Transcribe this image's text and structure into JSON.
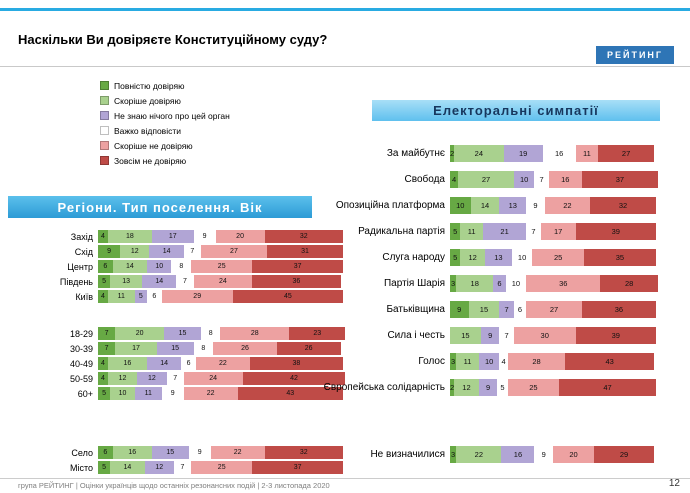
{
  "slide": {
    "title": "Наскільки Ви довіряєте Конституційному суду?",
    "logo": "РЕЙТИНГ",
    "footer": "група РЕЙТИНГ | Оцінки українців щодо останніх резонансних подій | 2-3 листопада 2020",
    "page": "12"
  },
  "legend": [
    {
      "label": "Повністю довіряю",
      "color": "#67A944"
    },
    {
      "label": "Скоріше довіряю",
      "color": "#A9D18E"
    },
    {
      "label": "Не знаю нічого про цей орган",
      "color": "#B1A5D5"
    },
    {
      "label": "Важко відповісти",
      "color": "#FFFFFF"
    },
    {
      "label": "Скоріше не довіряю",
      "color": "#EDA1A1"
    },
    {
      "label": "Зовсім не довіряю",
      "color": "#BF4B47"
    }
  ],
  "chart_data": [
    {
      "type": "bar",
      "variant": "stacked-horizontal",
      "title": "Регіони. Тип поселення. Вік",
      "unit": "%",
      "xlim": [
        0,
        100
      ],
      "series_labels": [
        "Повністю довіряю",
        "Скоріше довіряю",
        "Не знаю нічого про цей орган",
        "Важко відповісти",
        "Скоріше не довіряю",
        "Зовсім не довіряю"
      ],
      "groups": [
        {
          "rows": [
            {
              "label": "Захід",
              "values": [
                4,
                18,
                17,
                9,
                20,
                32
              ]
            },
            {
              "label": "Схід",
              "values": [
                9,
                12,
                14,
                7,
                27,
                31
              ]
            },
            {
              "label": "Центр",
              "values": [
                6,
                14,
                10,
                8,
                25,
                37
              ]
            },
            {
              "label": "Південь",
              "values": [
                5,
                13,
                14,
                7,
                24,
                36
              ]
            },
            {
              "label": "Київ",
              "values": [
                4,
                11,
                5,
                6,
                29,
                45
              ]
            }
          ]
        },
        {
          "rows": [
            {
              "label": "18-29",
              "values": [
                7,
                20,
                15,
                8,
                28,
                23
              ]
            },
            {
              "label": "30-39",
              "values": [
                7,
                17,
                15,
                8,
                26,
                26
              ]
            },
            {
              "label": "40-49",
              "values": [
                4,
                16,
                14,
                6,
                22,
                38
              ]
            },
            {
              "label": "50-59",
              "values": [
                4,
                12,
                12,
                7,
                24,
                42
              ]
            },
            {
              "label": "60+",
              "values": [
                5,
                10,
                11,
                9,
                22,
                43
              ]
            }
          ]
        },
        {
          "rows": [
            {
              "label": "Село",
              "values": [
                6,
                16,
                15,
                9,
                22,
                32
              ]
            },
            {
              "label": "Місто",
              "values": [
                5,
                14,
                12,
                7,
                25,
                37
              ]
            }
          ]
        }
      ]
    },
    {
      "type": "bar",
      "variant": "stacked-horizontal",
      "title": "Електоральні симпатії",
      "unit": "%",
      "xlim": [
        0,
        100
      ],
      "series_labels": [
        "Повністю довіряю",
        "Скоріше довіряю",
        "Не знаю нічого про цей орган",
        "Важко відповісти",
        "Скоріше не довіряю",
        "Зовсім не довіряю"
      ],
      "groups": [
        {
          "rows": [
            {
              "label": "За майбутнє",
              "values": [
                2,
                24,
                19,
                16,
                11,
                27
              ]
            },
            {
              "label": "Свобода",
              "values": [
                4,
                27,
                10,
                7,
                16,
                37
              ]
            },
            {
              "label": "Опозиційна платформа",
              "values": [
                10,
                14,
                13,
                9,
                22,
                32
              ]
            },
            {
              "label": "Радикальна партія",
              "values": [
                5,
                11,
                21,
                7,
                17,
                39
              ]
            },
            {
              "label": "Слуга народу",
              "values": [
                5,
                12,
                13,
                10,
                25,
                35
              ]
            },
            {
              "label": "Партія Шарія",
              "values": [
                3,
                18,
                6,
                10,
                36,
                28
              ]
            },
            {
              "label": "Батьківщина",
              "values": [
                9,
                15,
                7,
                6,
                27,
                36
              ]
            },
            {
              "label": "Сила і честь",
              "values": [
                0,
                15,
                9,
                7,
                30,
                39
              ]
            },
            {
              "label": "Голос",
              "values": [
                3,
                11,
                10,
                4,
                28,
                43
              ]
            },
            {
              "label": "Європейська солідарність",
              "values": [
                2,
                12,
                9,
                5,
                25,
                47
              ]
            }
          ]
        },
        {
          "rows": [
            {
              "label": "Не визначилися",
              "values": [
                3,
                22,
                16,
                9,
                20,
                29
              ]
            }
          ]
        }
      ]
    }
  ]
}
